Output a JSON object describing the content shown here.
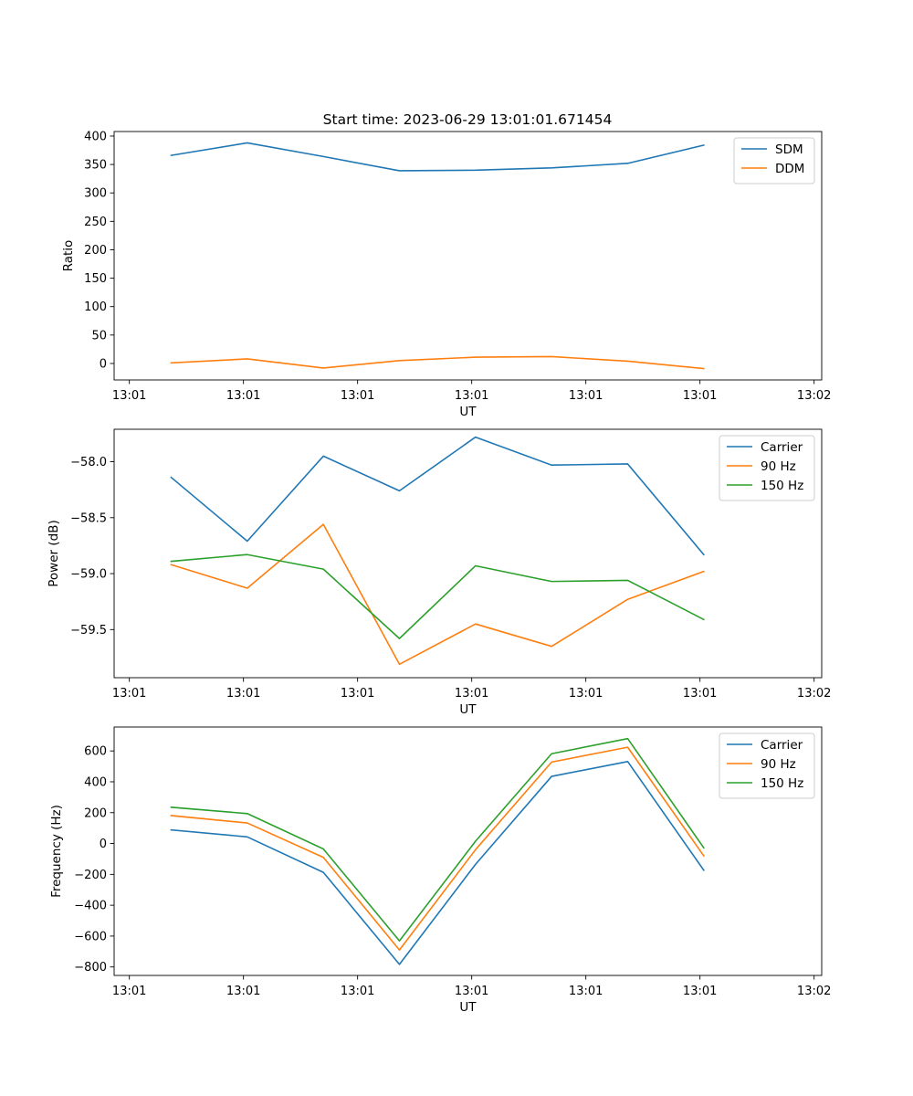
{
  "figure": {
    "title": "Start time: 2023-06-29 13:01:01.671454"
  },
  "chart_data": [
    {
      "type": "line",
      "title": "Start time: 2023-06-29 13:01:01.671454",
      "xlabel": "UT",
      "ylabel": "Ratio",
      "x": [
        0,
        1,
        2,
        3,
        4,
        5,
        6,
        7
      ],
      "xlim": [
        -0.75,
        8.55
      ],
      "ylim": [
        -29,
        408
      ],
      "xticks": [
        -0.55,
        0.95,
        2.45,
        3.95,
        5.45,
        6.95,
        8.45
      ],
      "xtick_labels": [
        "13:01",
        "13:01",
        "13:01",
        "13:01",
        "13:01",
        "13:01",
        "13:02"
      ],
      "yticks": [
        0,
        50,
        100,
        150,
        200,
        250,
        300,
        350,
        400
      ],
      "ytick_labels": [
        "0",
        "50",
        "100",
        "150",
        "200",
        "250",
        "300",
        "350",
        "400"
      ],
      "legend": "upper right",
      "series": [
        {
          "name": "SDM",
          "color": "#1f77b4",
          "values": [
            366,
            388,
            364,
            339,
            340,
            344,
            352,
            384
          ]
        },
        {
          "name": "DDM",
          "color": "#ff7f0e",
          "values": [
            1,
            8,
            -8,
            5,
            11,
            12,
            4,
            -9
          ]
        }
      ]
    },
    {
      "type": "line",
      "xlabel": "UT",
      "ylabel": "Power (dB)",
      "x": [
        0,
        1,
        2,
        3,
        4,
        5,
        6,
        7
      ],
      "xlim": [
        -0.75,
        8.55
      ],
      "ylim": [
        -59.93,
        -57.71
      ],
      "xticks": [
        -0.55,
        0.95,
        2.45,
        3.95,
        5.45,
        6.95,
        8.45
      ],
      "xtick_labels": [
        "13:01",
        "13:01",
        "13:01",
        "13:01",
        "13:01",
        "13:01",
        "13:02"
      ],
      "yticks": [
        -59.5,
        -59.0,
        -58.5,
        -58.0
      ],
      "ytick_labels": [
        "−59.5",
        "−59.0",
        "−58.5",
        "−58.0"
      ],
      "legend": "upper right",
      "series": [
        {
          "name": "Carrier",
          "color": "#1f77b4",
          "values": [
            -58.14,
            -58.71,
            -57.95,
            -58.26,
            -57.78,
            -58.03,
            -58.02,
            -58.83
          ]
        },
        {
          "name": "90 Hz",
          "color": "#ff7f0e",
          "values": [
            -58.92,
            -59.13,
            -58.56,
            -59.81,
            -59.45,
            -59.65,
            -59.23,
            -58.98
          ]
        },
        {
          "name": "150 Hz",
          "color": "#2ca02c",
          "values": [
            -58.89,
            -58.83,
            -58.96,
            -59.58,
            -58.93,
            -59.07,
            -59.06,
            -59.41
          ]
        }
      ]
    },
    {
      "type": "line",
      "xlabel": "UT",
      "ylabel": "Frequency (Hz)",
      "x": [
        0,
        1,
        2,
        3,
        4,
        5,
        6,
        7
      ],
      "xlim": [
        -0.75,
        8.55
      ],
      "ylim": [
        -855,
        755
      ],
      "xticks": [
        -0.55,
        0.95,
        2.45,
        3.95,
        5.45,
        6.95,
        8.45
      ],
      "xtick_labels": [
        "13:01",
        "13:01",
        "13:01",
        "13:01",
        "13:01",
        "13:01",
        "13:02"
      ],
      "yticks": [
        -800,
        -600,
        -400,
        -200,
        0,
        200,
        400,
        600
      ],
      "ytick_labels": [
        "−800",
        "−600",
        "−400",
        "−200",
        "0",
        "200",
        "400",
        "600"
      ],
      "legend": "upper right",
      "series": [
        {
          "name": "Carrier",
          "color": "#1f77b4",
          "values": [
            88,
            43,
            -187,
            -783,
            -135,
            435,
            531,
            -173
          ]
        },
        {
          "name": "90 Hz",
          "color": "#ff7f0e",
          "values": [
            181,
            133,
            -90,
            -690,
            -40,
            528,
            624,
            -80
          ]
        },
        {
          "name": "150 Hz",
          "color": "#2ca02c",
          "values": [
            235,
            194,
            -35,
            -631,
            15,
            582,
            680,
            -28
          ]
        }
      ]
    }
  ]
}
